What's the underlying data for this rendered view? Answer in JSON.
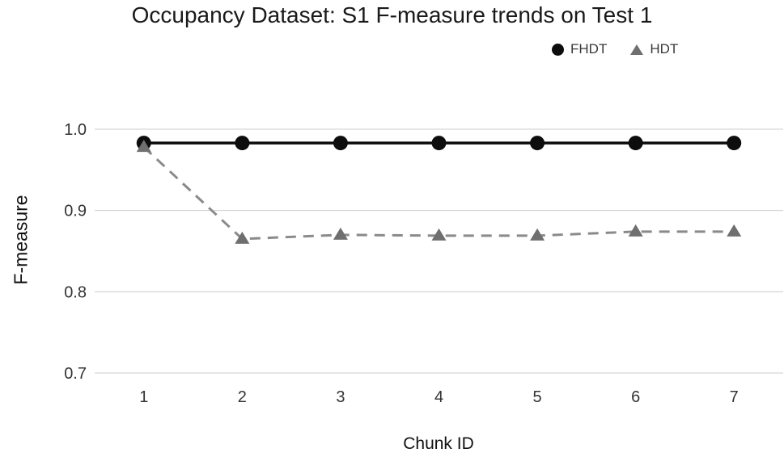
{
  "title": "Occupancy Dataset: S1 F-measure trends on Test 1",
  "legend": [
    {
      "label": "FHDT",
      "marker": "circle",
      "color": "#0d0d0d"
    },
    {
      "label": "HDT",
      "marker": "triangle",
      "color": "#6f6f6f"
    }
  ],
  "chart_data": {
    "type": "line",
    "title": "Occupancy Dataset: S1 F-measure trends on Test 1",
    "xlabel": "Chunk ID",
    "ylabel": "F-measure",
    "categories": [
      "1",
      "2",
      "3",
      "4",
      "5",
      "6",
      "7"
    ],
    "x": [
      1,
      2,
      3,
      4,
      5,
      6,
      7
    ],
    "series": [
      {
        "name": "FHDT",
        "values": [
          0.983,
          0.983,
          0.983,
          0.983,
          0.983,
          0.983,
          0.983
        ],
        "color": "#0d0d0d",
        "line_style": "solid",
        "marker": "circle"
      },
      {
        "name": "HDT",
        "values": [
          0.978,
          0.865,
          0.87,
          0.869,
          0.869,
          0.874,
          0.874
        ],
        "color": "#6f6f6f",
        "line_color": "#8a8a8a",
        "line_style": "dashed",
        "marker": "triangle"
      }
    ],
    "ylim": [
      0.7,
      1.0
    ],
    "yticks": [
      1.0,
      0.9,
      0.8,
      0.7
    ],
    "ytick_labels": [
      "1.0",
      "0.9",
      "0.8",
      "0.7"
    ],
    "grid": "horizontal",
    "gridline_color": "#cccccc",
    "tick_label_color": "#333333",
    "legend_position": "top-right"
  }
}
